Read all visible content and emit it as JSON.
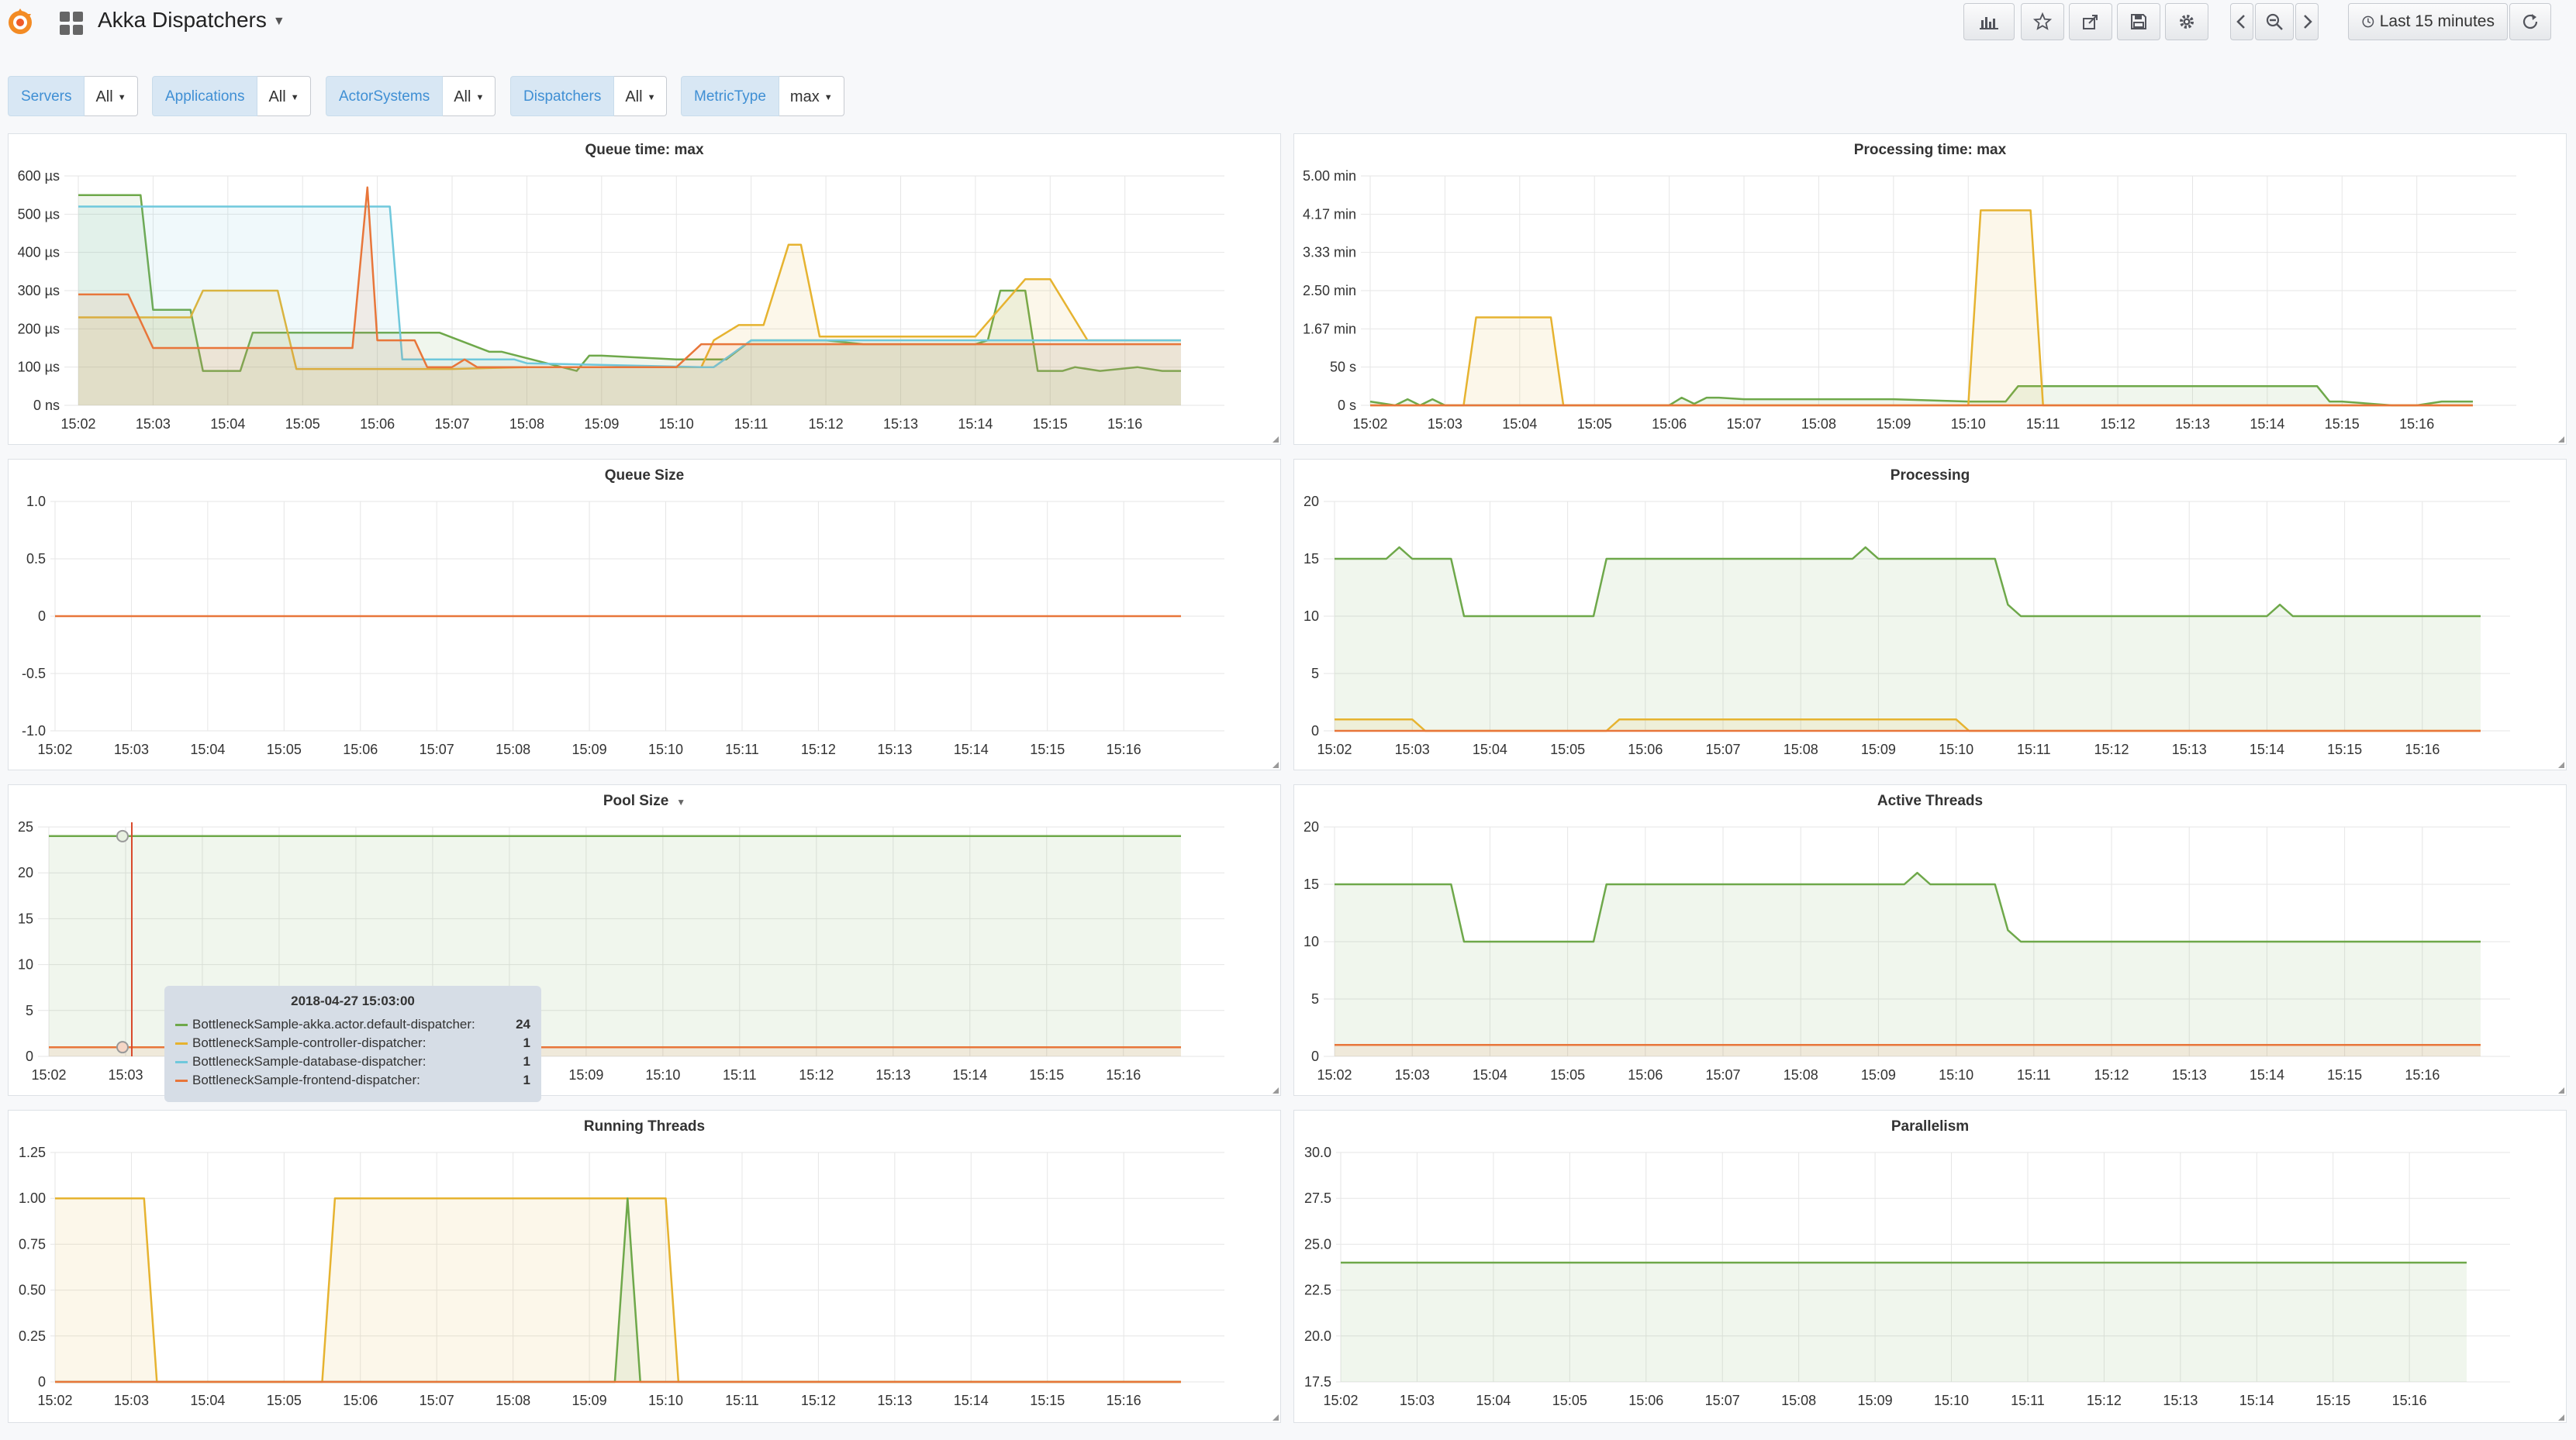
{
  "app": {
    "title": "Akka Dispatchers",
    "time_range": "Last 15 minutes"
  },
  "toolbar": {
    "icons": [
      "graph-add-icon",
      "star-icon",
      "share-icon",
      "save-icon",
      "gear-icon",
      "chevron-left-icon",
      "zoom-out-icon",
      "chevron-right-icon",
      "clock-icon",
      "refresh-icon"
    ]
  },
  "variables": [
    {
      "label": "Servers",
      "value": "All"
    },
    {
      "label": "Applications",
      "value": "All"
    },
    {
      "label": "ActorSystems",
      "value": "All"
    },
    {
      "label": "Dispatchers",
      "value": "All"
    },
    {
      "label": "MetricType",
      "value": "max"
    }
  ],
  "colors": {
    "green": "#6ea84a",
    "yellow": "#e6b330",
    "blue": "#6fc8dc",
    "orange": "#e8763a",
    "grid": "#e6e6e6"
  },
  "time_ticks": [
    "15:02",
    "15:03",
    "15:04",
    "15:05",
    "15:06",
    "15:07",
    "15:08",
    "15:09",
    "15:10",
    "15:11",
    "15:12",
    "15:13",
    "15:14",
    "15:15",
    "15:16"
  ],
  "tooltip": {
    "time": "2018-04-27 15:03:00",
    "rows": [
      {
        "name": "BottleneckSample-akka.actor.default-dispatcher:",
        "value": "24",
        "color": "#6ea84a"
      },
      {
        "name": "BottleneckSample-controller-dispatcher:",
        "value": "1",
        "color": "#e6b330"
      },
      {
        "name": "BottleneckSample-database-dispatcher:",
        "value": "1",
        "color": "#6fc8dc"
      },
      {
        "name": "BottleneckSample-frontend-dispatcher:",
        "value": "1",
        "color": "#e8763a"
      }
    ]
  },
  "chart_data": [
    {
      "title": "Queue time: max",
      "type": "line",
      "x_range": [
        "15:02",
        "15:16:45"
      ],
      "y_ticks": [
        "0 ns",
        "100 µs",
        "200 µs",
        "300 µs",
        "400 µs",
        "500 µs",
        "600 µs"
      ],
      "ylim": [
        0,
        600
      ],
      "series": [
        {
          "color": "green",
          "x": [
            "15:02",
            "15:02:50",
            "15:03",
            "15:03:30",
            "15:03:40",
            "15:04:10",
            "15:04:20",
            "15:05:10",
            "15:05:20",
            "15:06:50",
            "15:07:30",
            "15:07:40",
            "15:08:40",
            "15:08:50",
            "15:09",
            "15:10",
            "15:10:40",
            "15:11",
            "15:11:30",
            "15:12",
            "15:12:30",
            "15:13",
            "15:13:30",
            "15:14",
            "15:14:10",
            "15:14:20",
            "15:14:40",
            "15:14:50",
            "15:15:10",
            "15:15:20",
            "15:15:40",
            "15:16:10",
            "15:16:30",
            "15:16:45"
          ],
          "y": [
            550,
            550,
            250,
            250,
            90,
            90,
            190,
            190,
            190,
            190,
            140,
            140,
            90,
            130,
            130,
            120,
            120,
            170,
            170,
            170,
            160,
            160,
            160,
            160,
            170,
            300,
            300,
            90,
            90,
            100,
            90,
            100,
            90,
            90
          ]
        },
        {
          "color": "yellow",
          "x": [
            "15:02",
            "15:02:55",
            "15:03",
            "15:03:30",
            "15:03:40",
            "15:04:40",
            "15:04:55",
            "15:06",
            "15:07",
            "15:08",
            "15:09",
            "15:10",
            "15:10:20",
            "15:10:30",
            "15:10:50",
            "15:11:10",
            "15:11:30",
            "15:11:40",
            "15:11:55",
            "15:12:50",
            "15:13:30",
            "15:13:50",
            "15:14",
            "15:14:40",
            "15:15",
            "15:15:30",
            "15:16:45"
          ],
          "y": [
            230,
            230,
            230,
            230,
            300,
            300,
            95,
            95,
            95,
            100,
            100,
            100,
            100,
            170,
            210,
            210,
            420,
            420,
            180,
            180,
            180,
            180,
            180,
            330,
            330,
            170,
            170
          ]
        },
        {
          "color": "blue",
          "x": [
            "15:02",
            "15:02:20",
            "15:05:40",
            "15:06:10",
            "15:06:20",
            "15:07",
            "15:07:50",
            "15:08",
            "15:10:20",
            "15:10:30",
            "15:11",
            "15:14:10",
            "15:14:30",
            "15:15",
            "15:16:45"
          ],
          "y": [
            520,
            520,
            520,
            520,
            120,
            120,
            120,
            110,
            100,
            100,
            170,
            170,
            170,
            170,
            170
          ]
        },
        {
          "color": "orange",
          "x": [
            "15:02",
            "15:02:40",
            "15:03",
            "15:05:40",
            "15:05:52",
            "15:06",
            "15:06:30",
            "15:06:40",
            "15:07",
            "15:07:10",
            "15:07:20",
            "15:07:40",
            "15:08",
            "15:10",
            "15:10:20",
            "15:11:30",
            "15:12",
            "15:14",
            "15:14:40",
            "15:15",
            "15:16:45"
          ],
          "y": [
            290,
            290,
            150,
            150,
            570,
            170,
            170,
            100,
            100,
            120,
            100,
            100,
            100,
            100,
            160,
            160,
            160,
            160,
            160,
            160,
            160
          ]
        }
      ]
    },
    {
      "title": "Processing time: max",
      "type": "line",
      "x_range": [
        "15:02",
        "15:16:45"
      ],
      "y_ticks": [
        "0 s",
        "50 s",
        "1.67 min",
        "2.50 min",
        "3.33 min",
        "4.17 min",
        "5.00 min"
      ],
      "ylim": [
        0,
        300
      ],
      "series": [
        {
          "color": "green",
          "x": [
            "15:02",
            "15:02:20",
            "15:02:30",
            "15:02:40",
            "15:02:50",
            "15:03",
            "15:03:10",
            "15:06",
            "15:06:10",
            "15:06:20",
            "15:06:30",
            "15:06:40",
            "15:07",
            "15:09",
            "15:10",
            "15:10:30",
            "15:10:40",
            "15:11",
            "15:12",
            "15:14",
            "15:14:40",
            "15:14:50",
            "15:15",
            "15:15:40",
            "15:16",
            "15:16:20",
            "15:16:45"
          ],
          "y": [
            5,
            0,
            8,
            0,
            8,
            0,
            0,
            0,
            10,
            2,
            10,
            10,
            8,
            8,
            5,
            5,
            25,
            25,
            25,
            25,
            25,
            5,
            5,
            0,
            0,
            5,
            5
          ]
        },
        {
          "color": "yellow",
          "x": [
            "15:02",
            "15:03:15",
            "15:03:25",
            "15:04:25",
            "15:04:35",
            "15:10",
            "15:10:10",
            "15:10:50",
            "15:11",
            "15:16:45"
          ],
          "y": [
            0,
            0,
            115,
            115,
            0,
            0,
            255,
            255,
            0,
            0
          ]
        },
        {
          "color": "orange",
          "x": [
            "15:02",
            "15:16:45"
          ],
          "y": [
            0,
            0
          ]
        }
      ]
    },
    {
      "title": "Queue Size",
      "type": "line",
      "x_range": [
        "15:02",
        "15:16:45"
      ],
      "y_ticks": [
        "-1.0",
        "-0.5",
        "0",
        "0.5",
        "1.0"
      ],
      "ylim": [
        -1,
        1
      ],
      "series": [
        {
          "color": "orange",
          "x": [
            "15:02",
            "15:16:45"
          ],
          "y": [
            0,
            0
          ]
        }
      ]
    },
    {
      "title": "Processing",
      "type": "line",
      "x_range": [
        "15:02",
        "15:16:45"
      ],
      "y_ticks": [
        "0",
        "5",
        "10",
        "15",
        "20"
      ],
      "ylim": [
        0,
        20
      ],
      "series": [
        {
          "color": "green",
          "x": [
            "15:02",
            "15:02:40",
            "15:02:50",
            "15:03",
            "15:03:30",
            "15:03:40",
            "15:05:20",
            "15:05:30",
            "15:07",
            "15:08:40",
            "15:08:50",
            "15:09",
            "15:10:30",
            "15:10:40",
            "15:10:50",
            "15:11",
            "15:14",
            "15:14:10",
            "15:14:20",
            "15:16:45"
          ],
          "y": [
            15,
            15,
            16,
            15,
            15,
            10,
            10,
            15,
            15,
            15,
            16,
            15,
            15,
            11,
            10,
            10,
            10,
            11,
            10,
            10
          ]
        },
        {
          "color": "yellow",
          "x": [
            "15:02",
            "15:03",
            "15:03:10",
            "15:05:30",
            "15:05:40",
            "15:10",
            "15:10:10",
            "15:16:45"
          ],
          "y": [
            1,
            1,
            0,
            0,
            1,
            1,
            0,
            0
          ]
        },
        {
          "color": "orange",
          "x": [
            "15:02",
            "15:16:45"
          ],
          "y": [
            0,
            0
          ]
        }
      ]
    },
    {
      "title": "Pool Size",
      "type": "line",
      "x_range": [
        "15:02",
        "15:16:45"
      ],
      "y_ticks": [
        "0",
        "5",
        "10",
        "15",
        "20",
        "25"
      ],
      "ylim": [
        0,
        25
      ],
      "series": [
        {
          "color": "green",
          "x": [
            "15:02",
            "15:16:45"
          ],
          "y": [
            24,
            24
          ]
        },
        {
          "color": "orange",
          "x": [
            "15:02",
            "15:16:45"
          ],
          "y": [
            1,
            1
          ]
        }
      ]
    },
    {
      "title": "Active Threads",
      "type": "line",
      "x_range": [
        "15:02",
        "15:16:45"
      ],
      "y_ticks": [
        "0",
        "5",
        "10",
        "15",
        "20"
      ],
      "ylim": [
        0,
        20
      ],
      "series": [
        {
          "color": "green",
          "x": [
            "15:02",
            "15:03:30",
            "15:03:40",
            "15:05:20",
            "15:05:30",
            "15:09:20",
            "15:09:30",
            "15:09:40",
            "15:10:30",
            "15:10:40",
            "15:10:50",
            "15:16:45"
          ],
          "y": [
            15,
            15,
            10,
            10,
            15,
            15,
            16,
            15,
            15,
            11,
            10,
            10
          ]
        },
        {
          "color": "orange",
          "x": [
            "15:02",
            "15:16:45"
          ],
          "y": [
            1,
            1
          ]
        }
      ]
    },
    {
      "title": "Running Threads",
      "type": "line",
      "x_range": [
        "15:02",
        "15:16:45"
      ],
      "y_ticks": [
        "0",
        "0.25",
        "0.50",
        "0.75",
        "1.00",
        "1.25"
      ],
      "ylim": [
        0,
        1.25
      ],
      "series": [
        {
          "color": "yellow",
          "x": [
            "15:02",
            "15:03:10",
            "15:03:20",
            "15:05:30",
            "15:05:40",
            "15:10",
            "15:10:10",
            "15:16:45"
          ],
          "y": [
            1,
            1,
            0,
            0,
            1,
            1,
            0,
            0
          ]
        },
        {
          "color": "green",
          "x": [
            "15:02",
            "15:09:20",
            "15:09:30",
            "15:09:40",
            "15:16:45"
          ],
          "y": [
            0,
            0,
            1,
            0,
            0
          ]
        },
        {
          "color": "orange",
          "x": [
            "15:02",
            "15:16:45"
          ],
          "y": [
            0,
            0
          ]
        }
      ]
    },
    {
      "title": "Parallelism",
      "type": "line",
      "x_range": [
        "15:02",
        "15:16:45"
      ],
      "y_ticks": [
        "17.5",
        "20.0",
        "22.5",
        "25.0",
        "27.5",
        "30.0"
      ],
      "ylim": [
        17.5,
        30
      ],
      "series": [
        {
          "color": "green",
          "x": [
            "15:02",
            "15:16:45"
          ],
          "y": [
            24,
            24
          ]
        }
      ]
    }
  ]
}
